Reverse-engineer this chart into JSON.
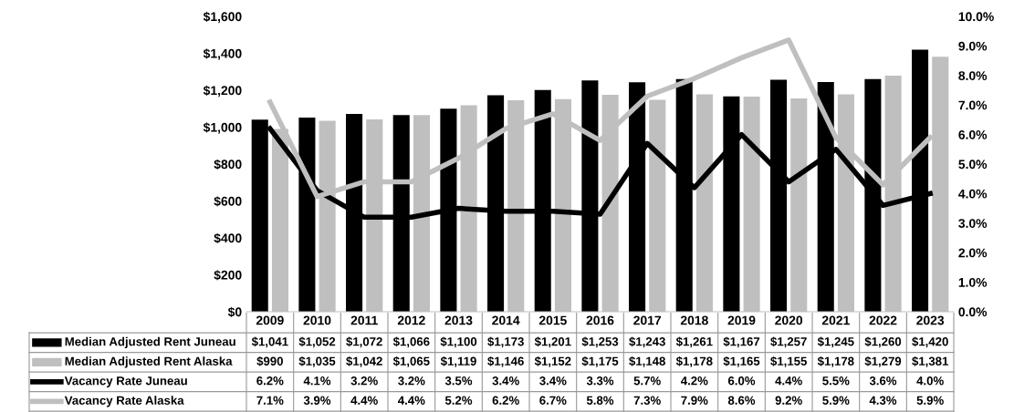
{
  "chart_data": {
    "type": "bar",
    "categories": [
      "2009",
      "2010",
      "2011",
      "2012",
      "2013",
      "2014",
      "2015",
      "2016",
      "2017",
      "2018",
      "2019",
      "2020",
      "2021",
      "2022",
      "2023"
    ],
    "series": [
      {
        "name": "Median Adjusted Rent Juneau",
        "color": "#000000",
        "values": [
          1041,
          1052,
          1072,
          1066,
          1100,
          1173,
          1201,
          1253,
          1243,
          1261,
          1167,
          1257,
          1245,
          1260,
          1420
        ],
        "value_labels": [
          "$1,041",
          "$1,052",
          "$1,072",
          "$1,066",
          "$1,100",
          "$1,173",
          "$1,201",
          "$1,253",
          "$1,243",
          "$1,261",
          "$1,167",
          "$1,257",
          "$1,245",
          "$1,260",
          "$1,420"
        ]
      },
      {
        "name": "Median Adjusted Rent Alaska",
        "color": "#bfbfbf",
        "values": [
          990,
          1035,
          1042,
          1065,
          1119,
          1146,
          1152,
          1175,
          1148,
          1178,
          1165,
          1155,
          1178,
          1279,
          1381
        ],
        "value_labels": [
          "$990",
          "$1,035",
          "$1,042",
          "$1,065",
          "$1,119",
          "$1,146",
          "$1,152",
          "$1,175",
          "$1,148",
          "$1,178",
          "$1,165",
          "$1,155",
          "$1,178",
          "$1,279",
          "$1,381"
        ]
      },
      {
        "name": "Vacancy Rate Juneau",
        "type": "line",
        "axis": "y2",
        "color": "#000000",
        "values": [
          6.2,
          4.1,
          3.2,
          3.2,
          3.5,
          3.4,
          3.4,
          3.3,
          5.7,
          4.2,
          6.0,
          4.4,
          5.5,
          3.6,
          4.0
        ],
        "value_labels": [
          "6.2%",
          "4.1%",
          "3.2%",
          "3.2%",
          "3.5%",
          "3.4%",
          "3.4%",
          "3.3%",
          "5.7%",
          "4.2%",
          "6.0%",
          "4.4%",
          "5.5%",
          "3.6%",
          "4.0%"
        ]
      },
      {
        "name": "Vacancy Rate Alaska",
        "type": "line",
        "axis": "y2",
        "color": "#bfbfbf",
        "values": [
          7.1,
          3.9,
          4.4,
          4.4,
          5.2,
          6.2,
          6.7,
          5.8,
          7.3,
          7.9,
          8.6,
          9.2,
          5.9,
          4.3,
          5.9
        ],
        "value_labels": [
          "7.1%",
          "3.9%",
          "4.4%",
          "4.4%",
          "5.2%",
          "6.2%",
          "6.7%",
          "5.8%",
          "7.3%",
          "7.9%",
          "8.6%",
          "9.2%",
          "5.9%",
          "4.3%",
          "5.9%"
        ]
      }
    ],
    "ylim": [
      0,
      1600
    ],
    "yticks": [
      {
        "value": 0,
        "label": "$0"
      },
      {
        "value": 200,
        "label": "$200"
      },
      {
        "value": 400,
        "label": "$400"
      },
      {
        "value": 600,
        "label": "$600"
      },
      {
        "value": 800,
        "label": "$800"
      },
      {
        "value": 1000,
        "label": "$1,000"
      },
      {
        "value": 1200,
        "label": "$1,200"
      },
      {
        "value": 1400,
        "label": "$1,400"
      },
      {
        "value": 1600,
        "label": "$1,600"
      }
    ],
    "y2lim": [
      0,
      10
    ],
    "y2ticks": [
      {
        "value": 0,
        "label": "0.0%"
      },
      {
        "value": 1,
        "label": "1.0%"
      },
      {
        "value": 2,
        "label": "2.0%"
      },
      {
        "value": 3,
        "label": "3.0%"
      },
      {
        "value": 4,
        "label": "4.0%"
      },
      {
        "value": 5,
        "label": "5.0%"
      },
      {
        "value": 6,
        "label": "6.0%"
      },
      {
        "value": 7,
        "label": "7.0%"
      },
      {
        "value": 8,
        "label": "8.0%"
      },
      {
        "value": 9,
        "label": "9.0%"
      },
      {
        "value": 10,
        "label": "10.0%"
      }
    ],
    "legend": "bottom",
    "marker": "none",
    "line_style": "solid"
  }
}
